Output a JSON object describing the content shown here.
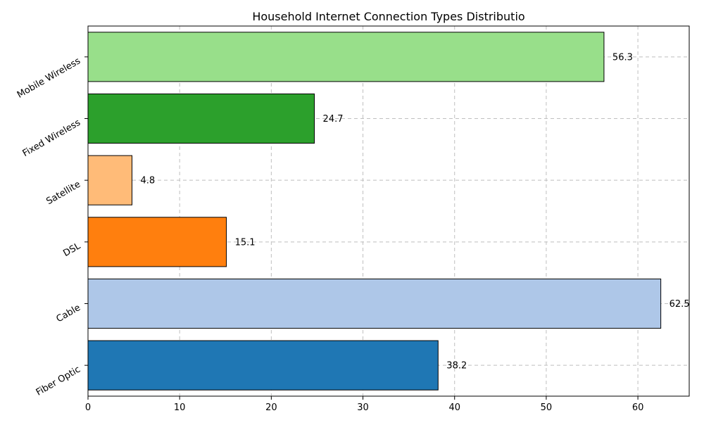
{
  "chart_data": {
    "type": "bar",
    "orientation": "horizontal",
    "title": "Household Internet Connection Types Distributio",
    "xlabel": "",
    "ylabel": "",
    "categories": [
      "Fiber Optic",
      "Cable",
      "DSL",
      "Satellite",
      "Fixed Wireless",
      "Mobile Wireless"
    ],
    "values": [
      38.2,
      62.5,
      15.1,
      4.8,
      24.7,
      56.3
    ],
    "value_labels": [
      "38.2",
      "62.5",
      "15.1",
      "4.8",
      "24.7",
      "56.3"
    ],
    "colors": [
      "#1f77b4",
      "#aec7e8",
      "#ff7f0e",
      "#ffbb78",
      "#2ca02c",
      "#98df8a"
    ],
    "xlim": [
      0,
      65.6
    ],
    "xticks": [
      0,
      10,
      20,
      30,
      40,
      50,
      60
    ],
    "grid": true,
    "legend": "none"
  }
}
